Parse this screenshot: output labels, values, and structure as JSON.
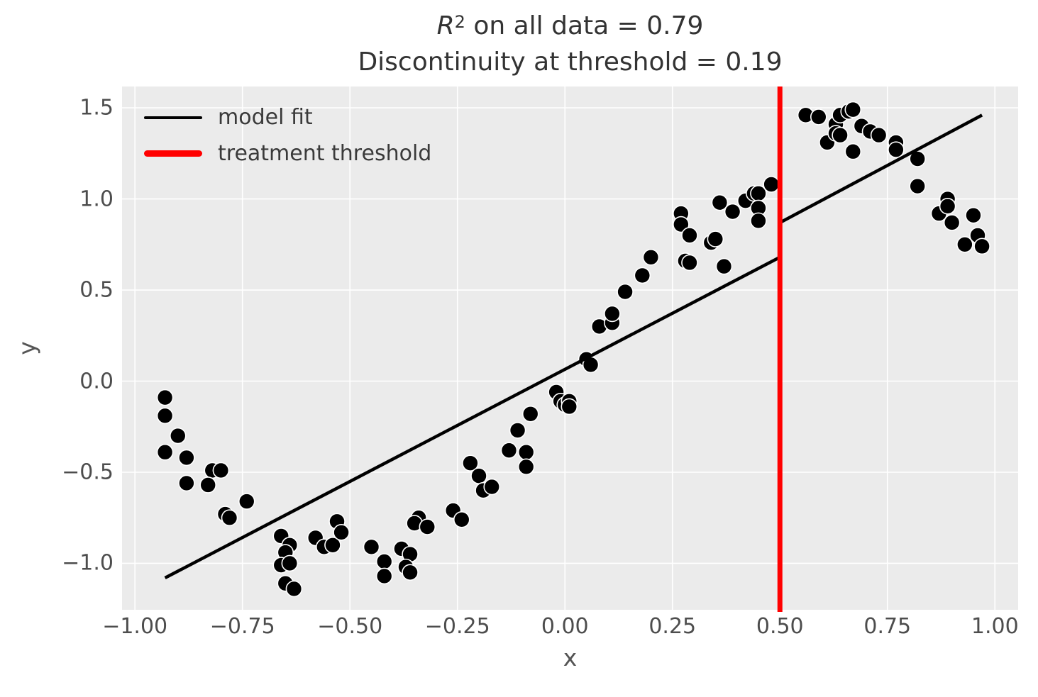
{
  "chart_data": {
    "type": "scatter",
    "title": {
      "r_symbol": "R",
      "r_exponent": "2",
      "line1_rest": " on all data = 0.79",
      "line2": "Discontinuity at threshold = 0.19"
    },
    "r_squared_all_data": 0.79,
    "discontinuity_at_threshold": 0.19,
    "treatment_threshold_x": 0.5,
    "xlabel": "x",
    "ylabel": "y",
    "xlim": [
      -1.03,
      1.054
    ],
    "ylim": [
      -1.255,
      1.617
    ],
    "grid": true,
    "x_ticks": [
      {
        "v": -1.0,
        "label": "−1.00"
      },
      {
        "v": -0.75,
        "label": "−0.75"
      },
      {
        "v": -0.5,
        "label": "−0.50"
      },
      {
        "v": -0.25,
        "label": "−0.25"
      },
      {
        "v": 0.0,
        "label": "0.00"
      },
      {
        "v": 0.25,
        "label": "0.25"
      },
      {
        "v": 0.5,
        "label": "0.50"
      },
      {
        "v": 0.75,
        "label": "0.75"
      },
      {
        "v": 1.0,
        "label": "1.00"
      }
    ],
    "y_ticks": [
      {
        "v": 1.5,
        "label": "1.5"
      },
      {
        "v": 1.0,
        "label": "1.0"
      },
      {
        "v": 0.5,
        "label": "0.5"
      },
      {
        "v": 0.0,
        "label": "0.0"
      },
      {
        "v": -0.5,
        "label": "−0.5"
      },
      {
        "v": -1.0,
        "label": "−1.0"
      }
    ],
    "legend": {
      "position": "upper left",
      "entries": [
        {
          "label": "model fit",
          "color": "#000000",
          "line_width": 4
        },
        {
          "label": "treatment threshold",
          "color": "#ff0000",
          "line_width": 9
        }
      ]
    },
    "model_fit_line": [
      [
        -0.93,
        -1.08
      ],
      [
        0.5,
        0.68
      ],
      [
        0.5,
        0.87
      ],
      [
        0.97,
        1.46
      ]
    ],
    "scatter_points": [
      [
        -0.93,
        -0.09
      ],
      [
        -0.93,
        -0.19
      ],
      [
        -0.9,
        -0.3
      ],
      [
        -0.93,
        -0.39
      ],
      [
        -0.88,
        -0.42
      ],
      [
        -0.82,
        -0.49
      ],
      [
        -0.8,
        -0.49
      ],
      [
        -0.88,
        -0.56
      ],
      [
        -0.83,
        -0.57
      ],
      [
        -0.74,
        -0.66
      ],
      [
        -0.79,
        -0.73
      ],
      [
        -0.78,
        -0.75
      ],
      [
        -0.66,
        -0.85
      ],
      [
        -0.64,
        -0.9
      ],
      [
        -0.65,
        -0.94
      ],
      [
        -0.66,
        -1.01
      ],
      [
        -0.64,
        -1.0
      ],
      [
        -0.65,
        -1.11
      ],
      [
        -0.63,
        -1.14
      ],
      [
        -0.58,
        -0.86
      ],
      [
        -0.56,
        -0.91
      ],
      [
        -0.54,
        -0.9
      ],
      [
        -0.53,
        -0.77
      ],
      [
        -0.52,
        -0.83
      ],
      [
        -0.45,
        -0.91
      ],
      [
        -0.42,
        -0.99
      ],
      [
        -0.42,
        -1.07
      ],
      [
        -0.38,
        -0.92
      ],
      [
        -0.36,
        -0.95
      ],
      [
        -0.37,
        -1.02
      ],
      [
        -0.36,
        -1.05
      ],
      [
        -0.34,
        -0.75
      ],
      [
        -0.35,
        -0.78
      ],
      [
        -0.32,
        -0.8
      ],
      [
        -0.26,
        -0.71
      ],
      [
        -0.24,
        -0.76
      ],
      [
        -0.22,
        -0.45
      ],
      [
        -0.2,
        -0.52
      ],
      [
        -0.19,
        -0.6
      ],
      [
        -0.17,
        -0.58
      ],
      [
        -0.13,
        -0.38
      ],
      [
        -0.11,
        -0.27
      ],
      [
        -0.09,
        -0.39
      ],
      [
        -0.09,
        -0.47
      ],
      [
        -0.08,
        -0.18
      ],
      [
        -0.02,
        -0.06
      ],
      [
        -0.01,
        -0.11
      ],
      [
        0.0,
        -0.13
      ],
      [
        0.01,
        -0.11
      ],
      [
        0.01,
        -0.14
      ],
      [
        0.05,
        0.12
      ],
      [
        0.06,
        0.09
      ],
      [
        0.08,
        0.3
      ],
      [
        0.11,
        0.32
      ],
      [
        0.11,
        0.37
      ],
      [
        0.14,
        0.49
      ],
      [
        0.18,
        0.58
      ],
      [
        0.2,
        0.68
      ],
      [
        0.27,
        0.92
      ],
      [
        0.27,
        0.86
      ],
      [
        0.29,
        0.8
      ],
      [
        0.28,
        0.66
      ],
      [
        0.29,
        0.65
      ],
      [
        0.34,
        0.76
      ],
      [
        0.35,
        0.78
      ],
      [
        0.36,
        0.98
      ],
      [
        0.39,
        0.93
      ],
      [
        0.37,
        0.63
      ],
      [
        0.42,
        0.99
      ],
      [
        0.44,
        1.03
      ],
      [
        0.45,
        1.03
      ],
      [
        0.45,
        0.95
      ],
      [
        0.45,
        0.88
      ],
      [
        0.48,
        1.08
      ],
      [
        0.56,
        1.46
      ],
      [
        0.59,
        1.45
      ],
      [
        0.61,
        1.31
      ],
      [
        0.63,
        1.41
      ],
      [
        0.63,
        1.36
      ],
      [
        0.64,
        1.35
      ],
      [
        0.64,
        1.46
      ],
      [
        0.66,
        1.48
      ],
      [
        0.67,
        1.49
      ],
      [
        0.67,
        1.26
      ],
      [
        0.69,
        1.4
      ],
      [
        0.71,
        1.37
      ],
      [
        0.73,
        1.35
      ],
      [
        0.77,
        1.31
      ],
      [
        0.77,
        1.27
      ],
      [
        0.82,
        1.22
      ],
      [
        0.82,
        1.07
      ],
      [
        0.87,
        0.92
      ],
      [
        0.89,
        1.0
      ],
      [
        0.89,
        0.96
      ],
      [
        0.9,
        0.87
      ],
      [
        0.93,
        0.75
      ],
      [
        0.95,
        0.91
      ],
      [
        0.96,
        0.8
      ],
      [
        0.97,
        0.74
      ]
    ],
    "colors": {
      "figure_background": "#ffffff",
      "plot_background": "#ebebeb",
      "grid": "#ffffff",
      "points": "#000000",
      "point_edge": "#ffffff",
      "fit_line": "#000000",
      "threshold_line": "#ff0000",
      "tick_text": "#4d4d4d",
      "title_text": "#333333"
    }
  }
}
